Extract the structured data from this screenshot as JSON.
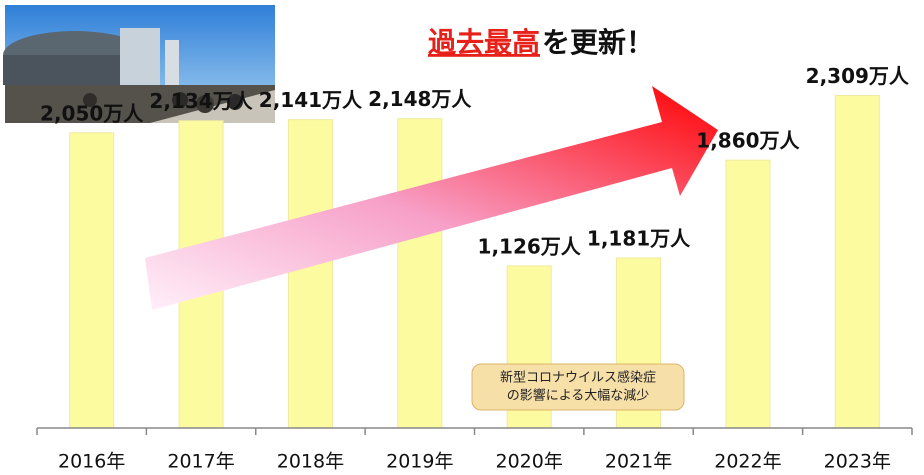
{
  "chart_data": {
    "type": "bar",
    "title_highlight": "過去最高",
    "title_rest": "を更新！",
    "categories": [
      "2016年",
      "2017年",
      "2018年",
      "2019年",
      "2020年",
      "2021年",
      "2022年",
      "2023年"
    ],
    "values": [
      2050,
      2134,
      2141,
      2148,
      1126,
      1181,
      1860,
      2309
    ],
    "value_labels": [
      "2,050万人",
      "2,134万人",
      "2,141万人",
      "2,148万人",
      "1,126万人",
      "1,181万人",
      "1,860万人",
      "2,309万人"
    ],
    "color": "#fdfba0",
    "ylim": [
      0,
      2500
    ],
    "annotation": [
      "新型コロナウイルス感染症",
      "の影響による大幅な減少"
    ]
  }
}
